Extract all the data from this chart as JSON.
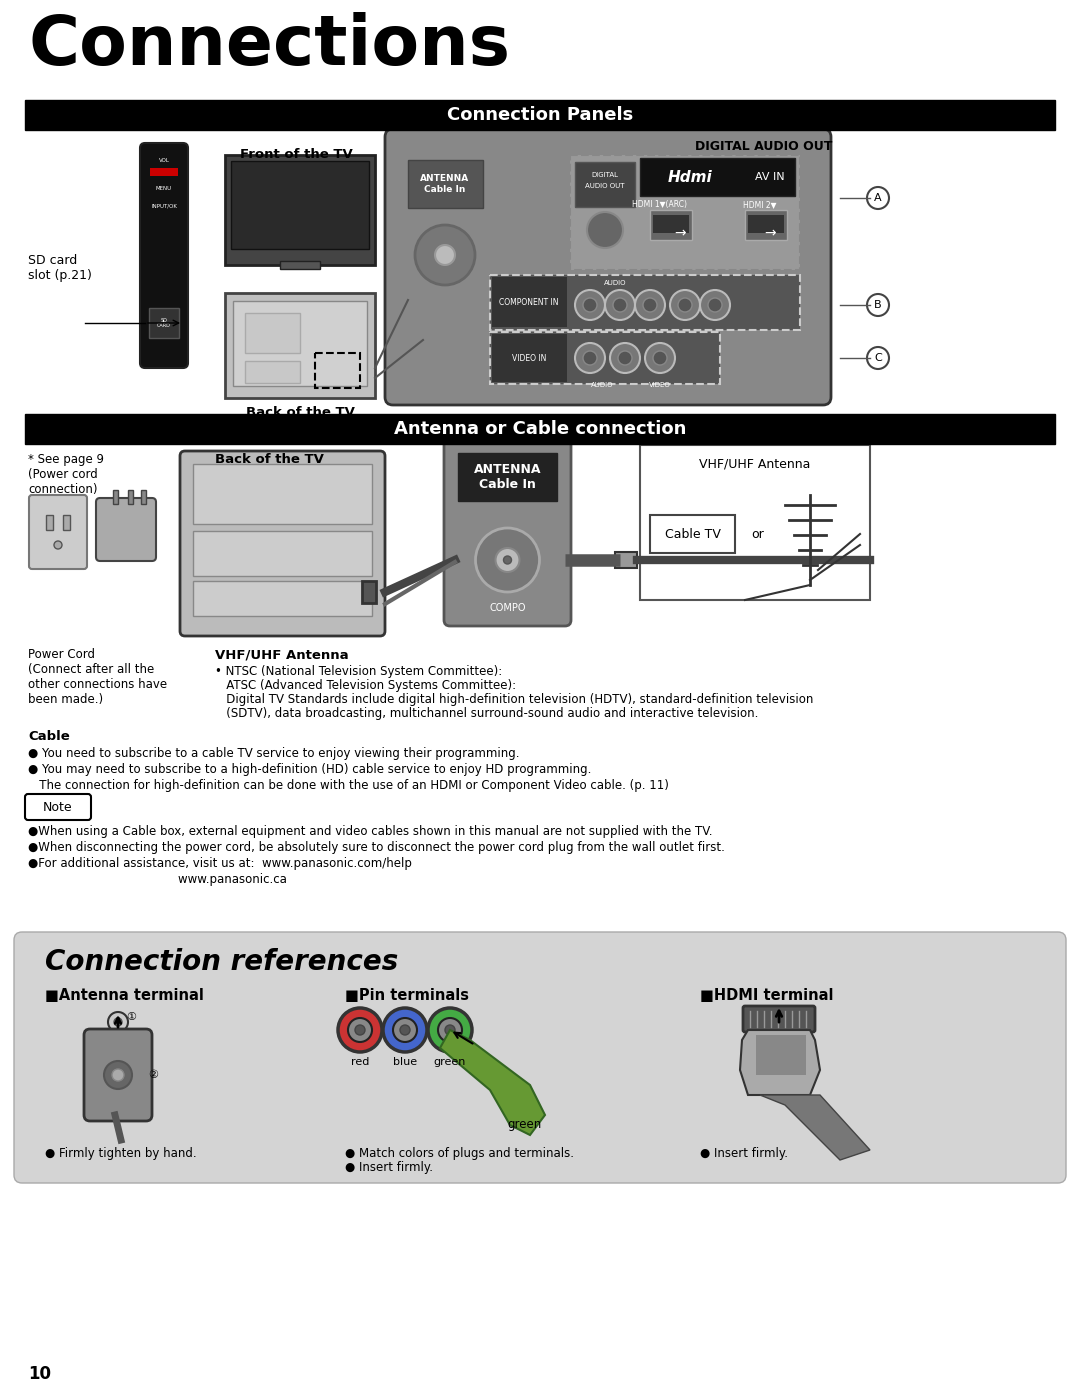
{
  "page_bg": "#ffffff",
  "title": "Connections",
  "section1_header": "Connection Panels",
  "section2_header": "Antenna or Cable connection",
  "header_bg": "#000000",
  "header_text_color": "#ffffff",
  "front_tv_label": "Front of the TV",
  "back_tv_label": "Back of the TV",
  "digital_audio_out_label": "DIGITAL AUDIO OUT",
  "sd_card_label": "SD card\nslot (p.21)",
  "section2_back_tv_label": "Back of the TV",
  "see_page_note": "* See page 9\n(Power cord\nconnection)",
  "power_cord_label": "Power Cord\n(Connect after all the\nother connections have\nbeen made.)",
  "vhfuhf_antenna_label": "VHF/UHF Antenna",
  "cable_tv_label": "Cable TV",
  "or_label": "or",
  "antenna_cable_in_label": "ANTENNA\nCable In",
  "compo_label": "COMPO",
  "vhfuhf_bold": "VHF/UHF Antenna",
  "vhfuhf_text1": "• NTSC (National Television System Committee):",
  "vhfuhf_text2": "   ATSC (Advanced Television Systems Committee):",
  "vhfuhf_text3": "   Digital TV Standards include digital high-definition television (HDTV), standard-definition television",
  "vhfuhf_text4": "   (SDTV), data broadcasting, multichannel surround-sound audio and interactive television.",
  "cable_bold": "Cable",
  "cable_bullet1": "● You need to subscribe to a cable TV service to enjoy viewing their programming.",
  "cable_bullet2": "● You may need to subscribe to a high-definition (HD) cable service to enjoy HD programming.",
  "cable_bullet2b": "   The connection for high-definition can be done with the use of an HDMI or Component Video cable. (p. 11)",
  "note_label": "Note",
  "note_bullet1": "●When using a Cable box, external equipment and video cables shown in this manual are not supplied with the TV.",
  "note_bullet2": "●When disconnecting the power cord, be absolutely sure to disconnect the power cord plug from the wall outlet first.",
  "note_bullet3": "●For additional assistance, visit us at:  www.panasonic.com/help",
  "note_bullet3b": "                                        www.panasonic.ca",
  "conn_ref_title": "Connection references",
  "conn_ref_bg": "#d4d4d4",
  "antenna_terminal_title": "■Antenna terminal",
  "pin_terminals_title": "■Pin terminals",
  "hdmi_terminal_title": "■HDMI terminal",
  "antenna_note": "● Firmly tighten by hand.",
  "pin_note1": "● Match colors of plugs and terminals.",
  "pin_note2": "● Insert firmly.",
  "hdmi_note": "● Insert firmly.",
  "red_label": "red",
  "blue_label": "blue",
  "green_label": "green",
  "green_label2": "green",
  "page_number": "10",
  "panel_bg": "#888888",
  "panel_dark": "#555555",
  "panel_darker": "#3a3a3a"
}
